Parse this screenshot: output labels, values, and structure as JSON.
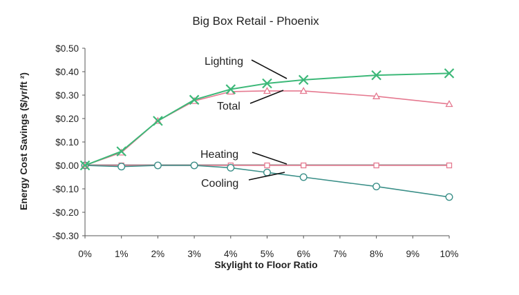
{
  "chart_data": {
    "type": "line",
    "title": "Big Box Retail - Phoenix",
    "xlabel": "Skylight to Floor Ratio",
    "ylabel": "Energy Cost Savings ($/yr/ft ²)",
    "x": [
      0,
      1,
      2,
      3,
      4,
      5,
      6,
      8,
      10
    ],
    "x_tick_values": [
      0,
      1,
      2,
      3,
      4,
      5,
      6,
      7,
      8,
      9,
      10
    ],
    "x_tick_labels": [
      "0%",
      "1%",
      "2%",
      "3%",
      "4%",
      "5%",
      "6%",
      "7%",
      "8%",
      "9%",
      "10%"
    ],
    "xlim": [
      0,
      10
    ],
    "y_tick_values": [
      -0.3,
      -0.2,
      -0.1,
      0.0,
      0.1,
      0.2,
      0.3,
      0.4,
      0.5
    ],
    "y_tick_labels": [
      "-$0.30",
      "-$0.20",
      "-$0.10",
      "$0.00",
      "$0.10",
      "$0.20",
      "$0.30",
      "$0.40",
      "$0.50"
    ],
    "ylim": [
      -0.3,
      0.5
    ],
    "grid": false,
    "legend": "none",
    "series": [
      {
        "name": "Lighting",
        "color": "#3cb878",
        "marker": "x",
        "values": [
          0.0,
          0.06,
          0.19,
          0.28,
          0.325,
          0.35,
          0.365,
          0.385,
          0.393
        ]
      },
      {
        "name": "Total",
        "color": "#e5788f",
        "marker": "triangle",
        "values": [
          0.0,
          0.055,
          0.19,
          0.275,
          0.315,
          0.318,
          0.318,
          0.295,
          0.262
        ]
      },
      {
        "name": "Heating",
        "color": "#e5788f",
        "marker": "square",
        "values": [
          0.0,
          0.0,
          0.0,
          0.0,
          0.0,
          0.0,
          0.0,
          0.0,
          0.0
        ]
      },
      {
        "name": "Cooling",
        "color": "#3a8f88",
        "marker": "circle",
        "values": [
          0.0,
          -0.005,
          0.0,
          0.0,
          -0.01,
          -0.03,
          -0.05,
          -0.09,
          -0.135
        ]
      }
    ],
    "annotations": [
      {
        "text": "Lighting",
        "series": "Lighting"
      },
      {
        "text": "Total",
        "series": "Total"
      },
      {
        "text": "Heating",
        "series": "Heating"
      },
      {
        "text": "Cooling",
        "series": "Cooling"
      }
    ]
  }
}
